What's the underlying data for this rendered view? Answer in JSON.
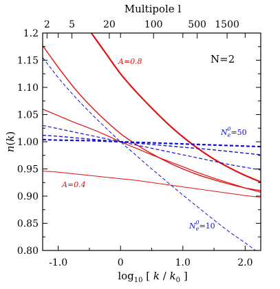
{
  "chart_data": {
    "type": "line",
    "xlabel": "log10 [ k / k0 ]",
    "ylabel": "n(k)",
    "top_xlabel": "Multipole l",
    "xlim": [
      -1.25,
      2.25
    ],
    "ylim": [
      0.8,
      1.2
    ],
    "x_ticks": [
      -1.0,
      0.0,
      1.0,
      2.0
    ],
    "x_tick_labels": [
      "-1.0",
      "0",
      "1.0",
      "2.0"
    ],
    "y_ticks": [
      0.8,
      0.85,
      0.9,
      0.95,
      1.0,
      1.05,
      1.1,
      1.15,
      1.2
    ],
    "y_tick_labels": [
      "0.80",
      "0.85",
      "0.90",
      "0.95",
      "1.00",
      "1.05",
      "1.10",
      "1.15",
      "1.2"
    ],
    "top_ticks": [
      {
        "label": "2",
        "x": -1.18
      },
      {
        "label": "5",
        "x": -0.78
      },
      {
        "label": "20",
        "x": -0.18
      },
      {
        "label": "100",
        "x": 0.53
      },
      {
        "label": "500",
        "x": 1.23
      },
      {
        "label": "1500",
        "x": 1.71
      }
    ],
    "annotations": {
      "n_label": "N=2",
      "a_high": "A=0.8",
      "a_low": "A=0.4",
      "ne_high_base": "N",
      "ne_high_sup": "0",
      "ne_high_sub": "e",
      "ne_high_val": "=50",
      "ne_low_base": "N",
      "ne_low_sup": "0",
      "ne_low_sub": "e",
      "ne_low_val": "=10"
    },
    "series": [
      {
        "color": "#e01010",
        "style": "solid",
        "width": 2.2,
        "x": [
          -0.5,
          -0.25,
          0.0,
          0.25,
          0.5,
          0.75,
          1.0,
          1.25,
          1.5,
          1.75,
          2.0,
          2.25
        ],
        "y": [
          1.205,
          1.165,
          1.125,
          1.092,
          1.062,
          1.034,
          1.009,
          0.987,
          0.968,
          0.952,
          0.938,
          0.926
        ]
      },
      {
        "color": "#e01010",
        "style": "solid",
        "width": 1.4,
        "x": [
          -1.25,
          -1.0,
          -0.75,
          -0.5,
          -0.25,
          0.0,
          0.25,
          0.5,
          0.75,
          1.0,
          1.25,
          1.5,
          1.75,
          2.0,
          2.25
        ],
        "y": [
          1.177,
          1.137,
          1.1,
          1.068,
          1.04,
          1.015,
          0.995,
          0.978,
          0.963,
          0.95,
          0.939,
          0.93,
          0.922,
          0.915,
          0.91
        ]
      },
      {
        "color": "#e01010",
        "style": "solid",
        "width": 1.2,
        "x": [
          -1.25,
          -1.0,
          -0.75,
          -0.5,
          -0.25,
          0.0,
          0.25,
          0.5,
          0.75,
          1.0,
          1.25,
          1.5,
          1.75,
          2.0,
          2.25
        ],
        "y": [
          1.06,
          1.048,
          1.036,
          1.025,
          1.013,
          1.0,
          0.988,
          0.976,
          0.965,
          0.954,
          0.943,
          0.933,
          0.924,
          0.915,
          0.907
        ]
      },
      {
        "color": "#e01010",
        "style": "solid",
        "width": 1.0,
        "x": [
          -1.25,
          -1.0,
          -0.75,
          -0.5,
          -0.25,
          0.0,
          0.25,
          0.5,
          0.75,
          1.0,
          1.25,
          1.5,
          1.75,
          2.0,
          2.25
        ],
        "y": [
          0.946,
          0.944,
          0.941,
          0.938,
          0.935,
          0.932,
          0.929,
          0.925,
          0.921,
          0.917,
          0.913,
          0.909,
          0.905,
          0.901,
          0.898
        ]
      },
      {
        "color": "#1010d0",
        "style": "dashed",
        "width": 2.2,
        "x": [
          -1.25,
          -1.0,
          -0.5,
          0.0,
          0.5,
          1.0,
          1.5,
          2.0,
          2.25
        ],
        "y": [
          1.004,
          1.003,
          1.002,
          1.0,
          0.998,
          0.996,
          0.994,
          0.992,
          0.991
        ]
      },
      {
        "color": "#1010d0",
        "style": "dashed",
        "width": 1.4,
        "x": [
          -1.25,
          -1.0,
          -0.5,
          0.0,
          0.5,
          1.0,
          1.5,
          2.0,
          2.25
        ],
        "y": [
          1.012,
          1.01,
          1.005,
          1.0,
          0.995,
          0.99,
          0.985,
          0.979,
          0.976
        ]
      },
      {
        "color": "#1010d0",
        "style": "dashed",
        "width": 1.2,
        "x": [
          -1.25,
          -1.0,
          -0.75,
          -0.5,
          -0.25,
          0.0,
          0.25,
          0.5,
          0.75,
          1.0,
          1.25,
          1.5,
          1.75,
          2.0,
          2.25
        ],
        "y": [
          1.03,
          1.024,
          1.018,
          1.012,
          1.006,
          1.0,
          0.994,
          0.988,
          0.982,
          0.976,
          0.97,
          0.964,
          0.958,
          0.953,
          0.948
        ]
      },
      {
        "color": "#1010d0",
        "style": "dashed",
        "width": 1.0,
        "x": [
          -1.25,
          -1.0,
          -0.75,
          -0.5,
          -0.25,
          0.0,
          0.25,
          0.5,
          0.75,
          1.0,
          1.25,
          1.5,
          1.75,
          2.0,
          2.25
        ],
        "y": [
          1.155,
          1.118,
          1.085,
          1.055,
          1.027,
          1.0,
          0.975,
          0.95,
          0.926,
          0.902,
          0.879,
          0.856,
          0.834,
          0.814,
          0.793
        ]
      }
    ]
  }
}
